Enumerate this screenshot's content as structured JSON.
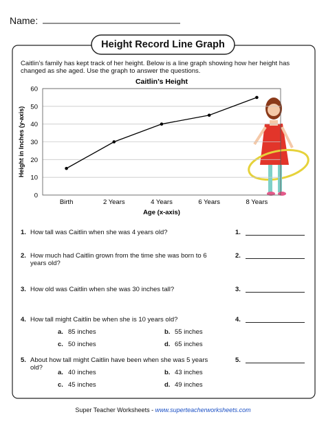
{
  "header": {
    "name_label": "Name:"
  },
  "title": "Height Record Line Graph",
  "intro": "Caitlin’s family has kept track of her height.  Below is a line graph showing how her height has changed as she aged.  Use the graph to answer the questions.",
  "chart_data": {
    "type": "line",
    "title": "Caitlin’s Height",
    "x_label": "Age (x-axis)",
    "y_label": "Height in Inches (y-axis)",
    "categories": [
      "Birth",
      "2 Years",
      "4 Years",
      "6 Years",
      "8 Years"
    ],
    "values": [
      15,
      30,
      40,
      45,
      55
    ],
    "color": "#000000",
    "ylim": [
      0,
      60
    ],
    "yticks": [
      0,
      10,
      20,
      30,
      40,
      50,
      60
    ],
    "grid": true
  },
  "questions": [
    {
      "number": "1.",
      "text": "How tall was Caitlin when she was 4 years old?",
      "answer_number": "1."
    },
    {
      "number": "2.",
      "text": "How much had Caitlin grown from the time she was born to 6 years old?",
      "answer_number": "2."
    },
    {
      "number": "3.",
      "text": "How old was Caitlin when she was 30 inches tall?",
      "answer_number": "3."
    },
    {
      "number": "4.",
      "text": "How tall might Caitlin be when she is 10 years old?",
      "answer_number": "4.",
      "options": [
        {
          "letter": "a.",
          "text": "85 inches"
        },
        {
          "letter": "b.",
          "text": "55 inches"
        },
        {
          "letter": "c.",
          "text": "50 inches"
        },
        {
          "letter": "d.",
          "text": "65 inches"
        }
      ]
    },
    {
      "number": "5.",
      "text": "About how tall might Caitlin have been when she was 5 years old?",
      "answer_number": "5.",
      "options": [
        {
          "letter": "a.",
          "text": "40 inches"
        },
        {
          "letter": "b.",
          "text": "43 inches"
        },
        {
          "letter": "c.",
          "text": "45 inches"
        },
        {
          "letter": "d.",
          "text": "49 inches"
        }
      ]
    }
  ],
  "footer": {
    "text": "Super Teacher Worksheets - ",
    "url": "www.superteacherworksheets.com"
  }
}
